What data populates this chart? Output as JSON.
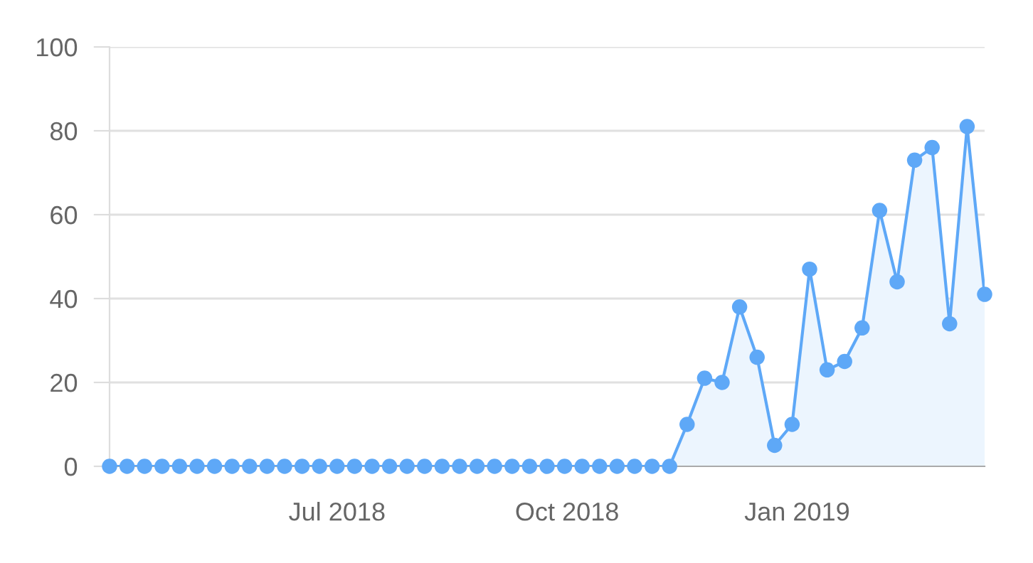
{
  "chart_data": {
    "type": "area",
    "x": [
      "2018-04-01",
      "2018-04-08",
      "2018-04-15",
      "2018-04-22",
      "2018-04-29",
      "2018-05-06",
      "2018-05-13",
      "2018-05-20",
      "2018-05-27",
      "2018-06-03",
      "2018-06-10",
      "2018-06-17",
      "2018-06-24",
      "2018-07-01",
      "2018-07-08",
      "2018-07-15",
      "2018-07-22",
      "2018-07-29",
      "2018-08-05",
      "2018-08-12",
      "2018-08-19",
      "2018-08-26",
      "2018-09-02",
      "2018-09-09",
      "2018-09-16",
      "2018-09-23",
      "2018-09-30",
      "2018-10-07",
      "2018-10-14",
      "2018-10-21",
      "2018-10-28",
      "2018-11-04",
      "2018-11-11",
      "2018-11-18",
      "2018-11-25",
      "2018-12-02",
      "2018-12-09",
      "2018-12-16",
      "2018-12-23",
      "2018-12-30",
      "2019-01-06",
      "2019-01-13",
      "2019-01-20",
      "2019-01-27",
      "2019-02-03",
      "2019-02-10",
      "2019-02-17",
      "2019-02-24",
      "2019-03-03",
      "2019-03-10",
      "2019-03-17"
    ],
    "series": [
      {
        "color": "#5ea8f7",
        "values": [
          0,
          0,
          0,
          0,
          0,
          0,
          0,
          0,
          0,
          0,
          0,
          0,
          0,
          0,
          0,
          0,
          0,
          0,
          0,
          0,
          0,
          0,
          0,
          0,
          0,
          0,
          0,
          0,
          0,
          0,
          0,
          0,
          0,
          10,
          21,
          20,
          38,
          26,
          5,
          10,
          47,
          23,
          25,
          33,
          61,
          44,
          73,
          76,
          34,
          81,
          41
        ]
      }
    ],
    "xlim": [
      "2018-04-01",
      "2019-03-17"
    ],
    "xticks": [
      {
        "value": "2018-07-01",
        "label": "Jul 2018"
      },
      {
        "value": "2018-10-01",
        "label": "Oct 2018"
      },
      {
        "value": "2019-01-01",
        "label": "Jan 2019"
      }
    ],
    "ylim": [
      0,
      100
    ],
    "yticks": [
      0,
      20,
      40,
      60,
      80,
      100
    ],
    "grid": "y",
    "marker": "circle",
    "line_style": "solid",
    "legend": false
  }
}
